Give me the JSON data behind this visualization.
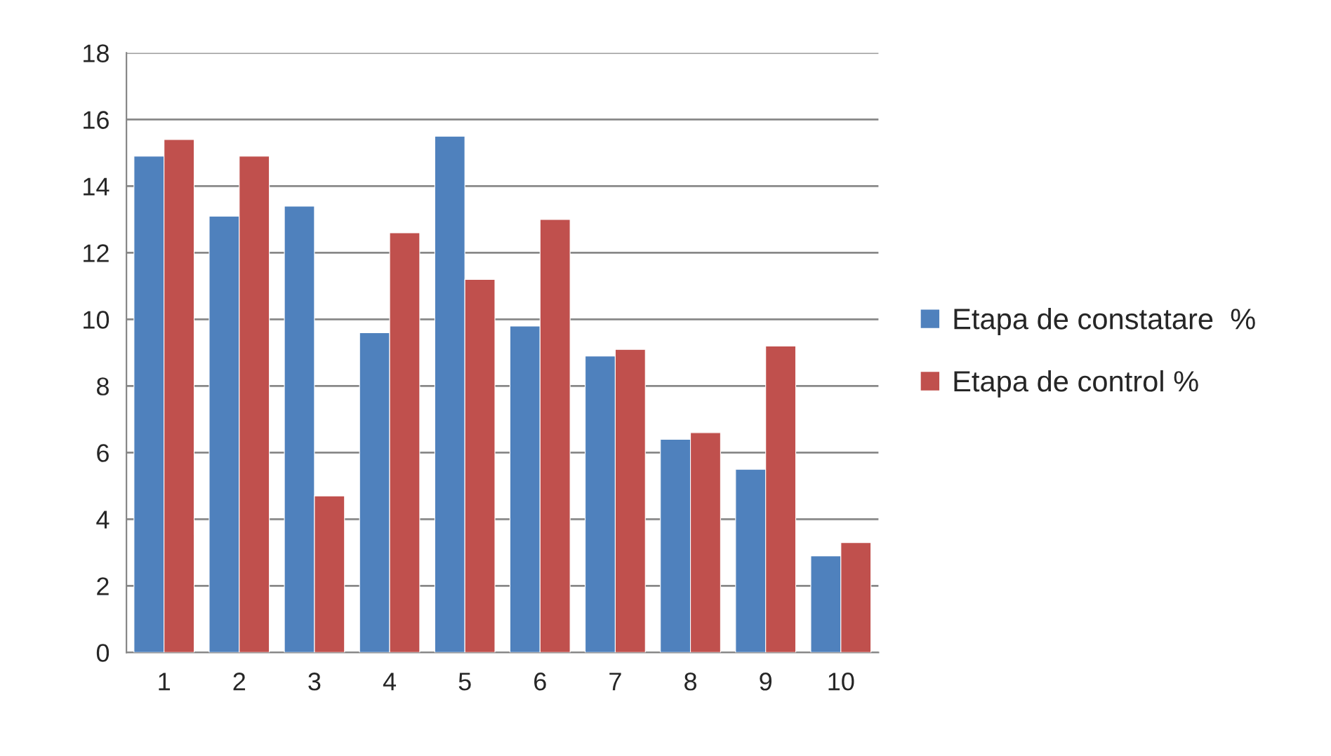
{
  "chart_data": {
    "type": "bar",
    "categories": [
      "1",
      "2",
      "3",
      "4",
      "5",
      "6",
      "7",
      "8",
      "9",
      "10"
    ],
    "series": [
      {
        "name": "Etapa de constatare  %",
        "color": "#4f81bd",
        "values": [
          14.9,
          13.1,
          13.4,
          9.6,
          15.5,
          9.8,
          8.9,
          6.4,
          5.5,
          2.9
        ]
      },
      {
        "name": "Etapa de control %",
        "color": "#c0504d",
        "values": [
          15.4,
          14.9,
          4.7,
          12.6,
          11.2,
          13.0,
          9.1,
          6.6,
          9.2,
          3.3
        ]
      }
    ],
    "ylim": [
      0,
      18
    ],
    "yticks": [
      0,
      2,
      4,
      6,
      8,
      10,
      12,
      14,
      16,
      18
    ],
    "grid": "y",
    "legend": "right"
  }
}
